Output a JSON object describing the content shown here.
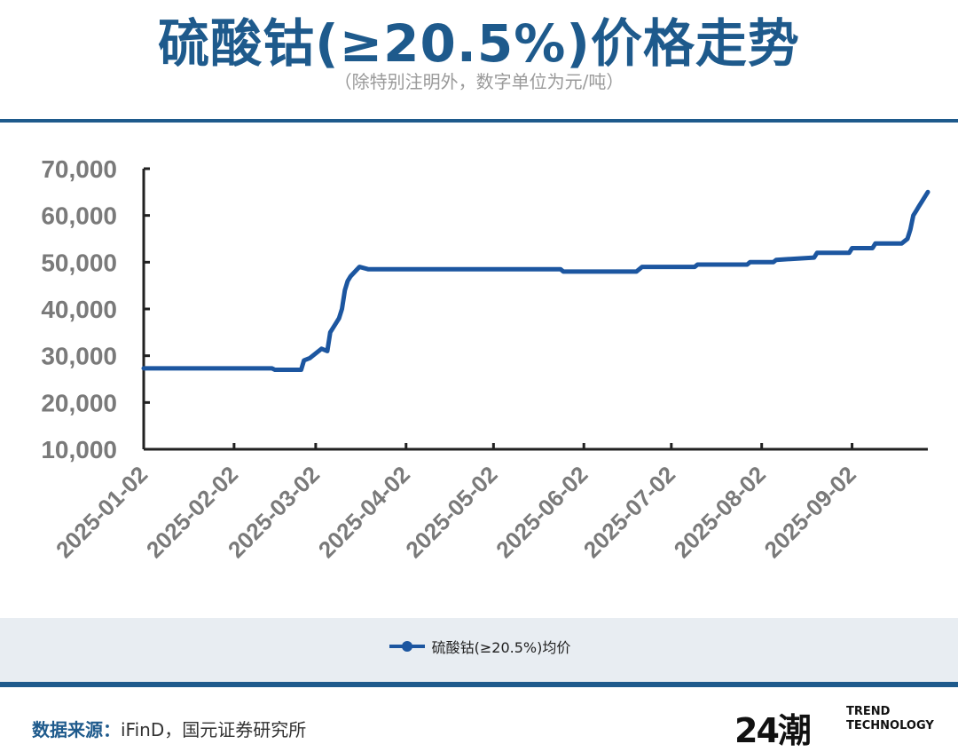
{
  "header": {
    "title": "硫酸钴(≥20.5%)价格走势",
    "subtitle": "（除特别注明外，数字单位为元/吨）"
  },
  "chart_data": {
    "type": "line",
    "title": "硫酸钴(≥20.5%)价格走势",
    "subtitle": "（除特别注明外，数字单位为元/吨）",
    "xlabel": "",
    "ylabel": "",
    "y_ticks": [
      "70,000",
      "60,000",
      "50,000",
      "40,000",
      "30,000",
      "20,000",
      "10,000"
    ],
    "y_tick_values": [
      70000,
      60000,
      50000,
      40000,
      30000,
      20000,
      10000
    ],
    "ylim": [
      10000,
      70000
    ],
    "x_ticks": [
      "2025-01-02",
      "2025-02-02",
      "2025-03-02",
      "2025-04-02",
      "2025-05-02",
      "2025-06-02",
      "2025-07-02",
      "2025-08-02",
      "2025-09-02"
    ],
    "xlim": [
      "2025-01-02",
      "2025-09-28"
    ],
    "grid": false,
    "legend_position": "bottom",
    "series": [
      {
        "name": "硫酸钴(≥20.5%)均价",
        "color": "#1c56a0",
        "x": [
          "2025-01-02",
          "2025-02-15",
          "2025-02-16",
          "2025-02-25",
          "2025-02-26",
          "2025-02-28",
          "2025-03-03",
          "2025-03-04",
          "2025-03-06",
          "2025-03-07",
          "2025-03-09",
          "2025-03-10",
          "2025-03-11",
          "2025-03-12",
          "2025-03-13",
          "2025-03-14",
          "2025-03-17",
          "2025-03-20",
          "2025-03-22",
          "2025-05-25",
          "2025-05-26",
          "2025-06-20",
          "2025-06-22",
          "2025-07-10",
          "2025-07-11",
          "2025-07-28",
          "2025-07-29",
          "2025-08-06",
          "2025-08-07",
          "2025-08-20",
          "2025-08-21",
          "2025-09-01",
          "2025-09-02",
          "2025-09-09",
          "2025-09-10",
          "2025-09-19",
          "2025-09-21",
          "2025-09-22",
          "2025-09-23",
          "2025-09-24",
          "2025-09-25",
          "2025-09-26",
          "2025-09-27",
          "2025-09-28"
        ],
        "values": [
          27300,
          27300,
          27000,
          27000,
          29000,
          29500,
          31000,
          31500,
          31000,
          35000,
          37000,
          38000,
          40000,
          44000,
          46000,
          47000,
          49000,
          48500,
          48500,
          48500,
          48000,
          48000,
          49000,
          49000,
          49500,
          49500,
          50000,
          50000,
          50500,
          51000,
          52000,
          52000,
          53000,
          53000,
          54000,
          54000,
          55000,
          57000,
          60000,
          61000,
          62000,
          63000,
          64000,
          65000
        ]
      }
    ]
  },
  "legend": {
    "label": "硫酸钴(≥20.5%)均价"
  },
  "footer": {
    "source_label": "数据来源：",
    "source_text": "iFinD，国元证券研究所"
  },
  "logo": {
    "mark": "24潮",
    "line1": "TREND",
    "line2": "TECHNOLOGY"
  }
}
